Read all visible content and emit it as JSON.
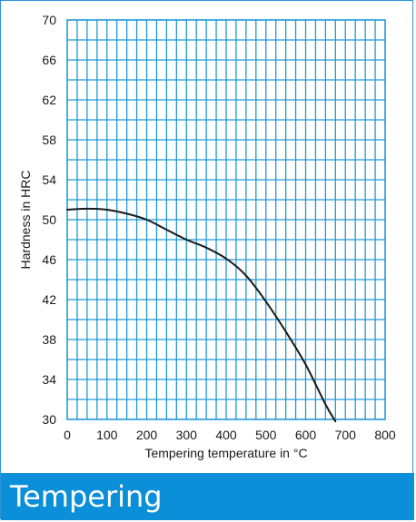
{
  "chart_data": {
    "type": "line",
    "title": "",
    "xlabel": "Tempering temperature in °C",
    "ylabel": "Hardness in HRC",
    "xlim": [
      0,
      800
    ],
    "ylim": [
      30,
      70
    ],
    "x_ticks": [
      0,
      100,
      200,
      300,
      400,
      500,
      600,
      700,
      800
    ],
    "y_ticks": [
      30,
      34,
      38,
      42,
      46,
      50,
      54,
      58,
      62,
      66,
      70
    ],
    "grid": true,
    "grid_color": "#1e9ad6",
    "line_color": "#1a1a1a",
    "series": [
      {
        "x": [
          0,
          50,
          100,
          150,
          200,
          250,
          300,
          350,
          400,
          450,
          500,
          550,
          600,
          650,
          675
        ],
        "y": [
          51.0,
          51.1,
          51.0,
          50.6,
          50.0,
          49.0,
          48.0,
          47.2,
          46.1,
          44.4,
          41.8,
          38.8,
          35.5,
          31.5,
          29.8
        ]
      }
    ]
  },
  "banner": {
    "title": "Tempering",
    "color": "#0a8fd8"
  }
}
